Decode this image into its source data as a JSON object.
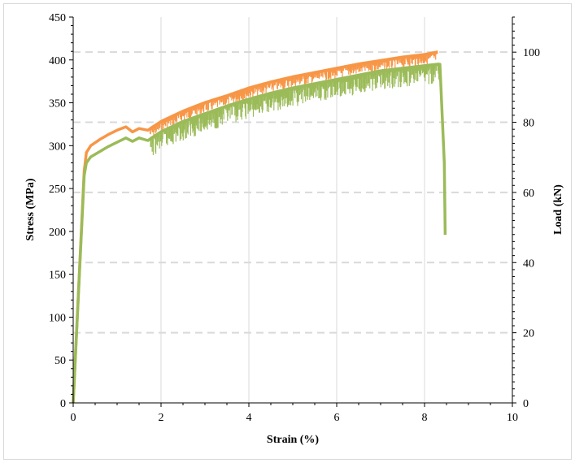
{
  "chart_data": {
    "type": "line",
    "title": "",
    "xlabel": "Strain (%)",
    "ylabel_left": "Stress (MPa)",
    "ylabel_right": "Load (kN)",
    "xlim": [
      0,
      10
    ],
    "ylim_left": [
      0,
      450
    ],
    "ylim_right": [
      0,
      110
    ],
    "x_ticks": [
      "0",
      "2",
      "4",
      "6",
      "8",
      "10"
    ],
    "y_left_ticks": [
      "0",
      "50",
      "100",
      "150",
      "200",
      "250",
      "300",
      "350",
      "400",
      "450"
    ],
    "y_right_ticks": [
      "0",
      "20",
      "40",
      "60",
      "80",
      "100"
    ],
    "grid": "vertical solid at x ticks, horizontal dashed at right-axis major ticks",
    "legend": "none",
    "series": [
      {
        "color": "#f79646",
        "axis": "left",
        "x": [
          0,
          0.25,
          0.3,
          0.4,
          0.6,
          0.8,
          1.0,
          1.2,
          1.35,
          1.5,
          1.7,
          2.0,
          2.5,
          3.0,
          3.5,
          4.0,
          4.5,
          5.0,
          5.5,
          6.0,
          6.5,
          7.0,
          7.5,
          8.0,
          8.3
        ],
        "y": [
          0,
          270,
          292,
          300,
          307,
          313,
          318,
          322,
          316,
          320,
          318,
          328,
          340,
          350,
          358,
          367,
          374,
          380,
          385,
          390,
          395,
          399,
          403,
          406,
          409
        ]
      },
      {
        "color": "#9bbb59",
        "axis": "left",
        "x": [
          0,
          0.25,
          0.3,
          0.4,
          0.6,
          0.8,
          1.0,
          1.2,
          1.35,
          1.5,
          1.7,
          2.0,
          2.5,
          3.0,
          3.5,
          4.0,
          4.5,
          5.0,
          5.5,
          6.0,
          6.5,
          7.0,
          7.5,
          8.0,
          8.35,
          8.45,
          8.47
        ],
        "y": [
          0,
          265,
          280,
          287,
          293,
          299,
          304,
          309,
          305,
          309,
          306,
          316,
          328,
          337,
          346,
          354,
          361,
          367,
          372,
          377,
          382,
          387,
          390,
          393,
          395,
          280,
          196
        ]
      }
    ]
  }
}
